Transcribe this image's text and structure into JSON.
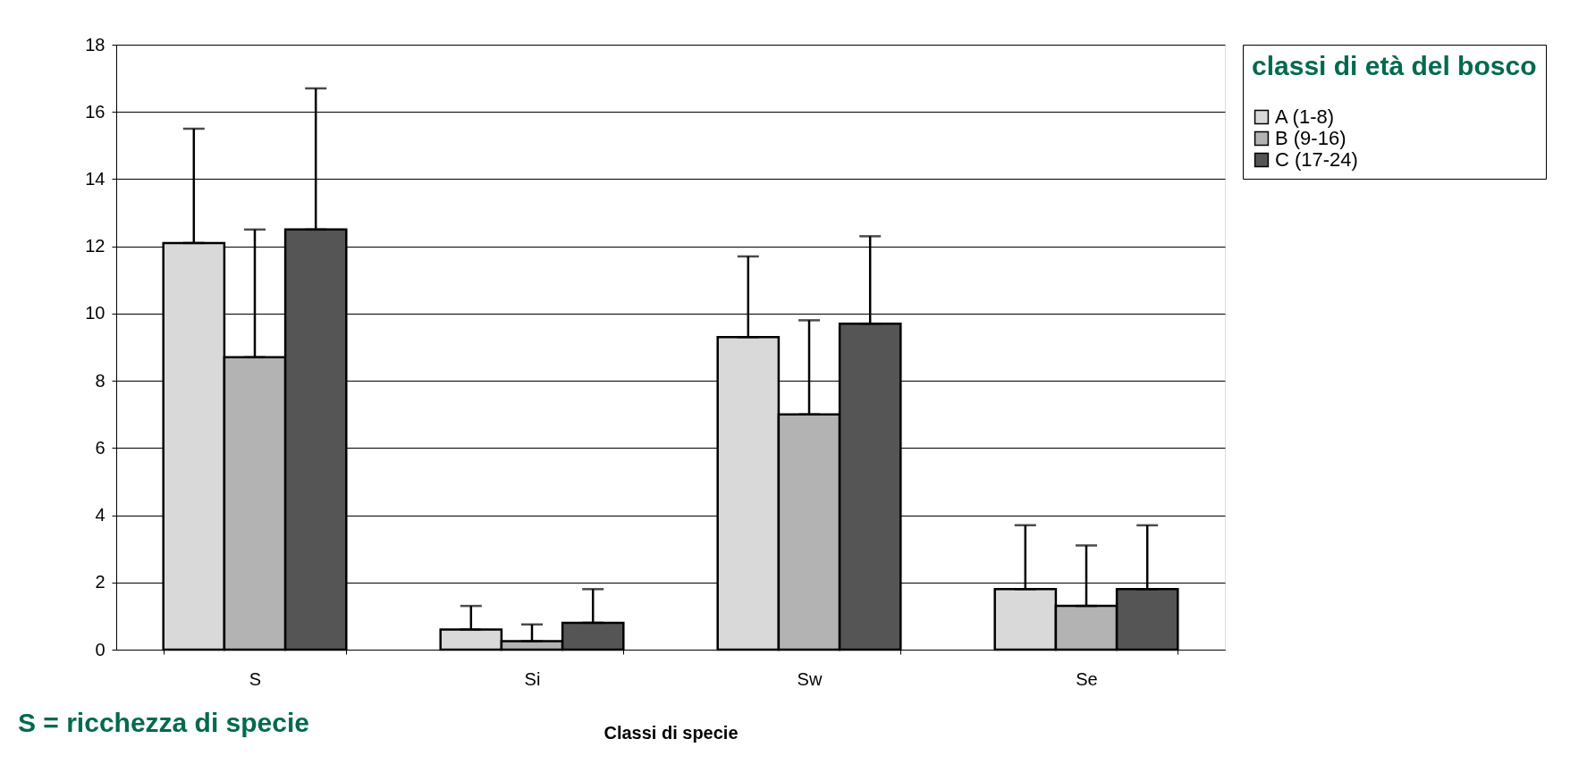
{
  "chart_data": {
    "type": "bar",
    "xlabel": "Classi di specie",
    "legend_title": "classi di età del bosco",
    "categories": [
      "S",
      "Si",
      "Sw",
      "Se"
    ],
    "series": [
      {
        "name": "A (1-8)",
        "color": "#d9d9d9",
        "values": [
          12.1,
          0.6,
          9.3,
          1.8
        ],
        "errors": [
          [
            12.1,
            15.5
          ],
          [
            0.6,
            1.3
          ],
          [
            9.3,
            11.7
          ],
          [
            1.8,
            3.7
          ]
        ]
      },
      {
        "name": "B (9-16)",
        "color": "#b3b3b3",
        "values": [
          8.7,
          0.25,
          7.0,
          1.3
        ],
        "errors": [
          [
            8.7,
            12.5
          ],
          [
            0.25,
            0.75
          ],
          [
            7.0,
            9.8
          ],
          [
            1.3,
            3.1
          ]
        ]
      },
      {
        "name": "C (17-24)",
        "color": "#555555",
        "values": [
          12.5,
          0.8,
          9.7,
          1.8
        ],
        "errors": [
          [
            12.5,
            16.7
          ],
          [
            0.8,
            1.8
          ],
          [
            9.7,
            12.3
          ],
          [
            1.8,
            3.7
          ]
        ]
      }
    ],
    "ylim": [
      0,
      18
    ],
    "yticks": [
      0,
      2,
      4,
      6,
      8,
      10,
      12,
      14,
      16,
      18
    ],
    "grid": "y",
    "legend": "right",
    "annotations": [
      "S = ricchezza di specie"
    ]
  }
}
